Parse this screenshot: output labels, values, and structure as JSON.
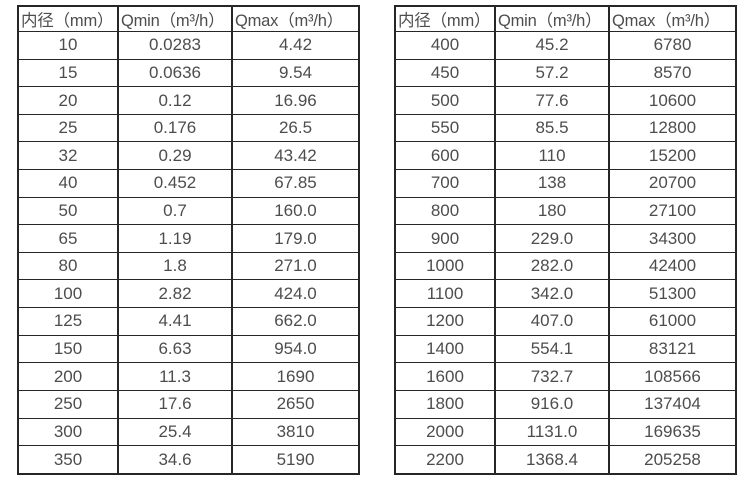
{
  "page": {
    "background_color": "#ffffff",
    "border_color": "#262626",
    "text_color": "#4d4d4d"
  },
  "tables": [
    {
      "name": "flow-spec-table-small-diameters",
      "headers": [
        "内径（mm）",
        "Qmin（m³/h）",
        "Qmax（m³/h）"
      ],
      "rows": [
        [
          "10",
          "0.0283",
          "4.42"
        ],
        [
          "15",
          "0.0636",
          "9.54"
        ],
        [
          "20",
          "0.12",
          "16.96"
        ],
        [
          "25",
          "0.176",
          "26.5"
        ],
        [
          "32",
          "0.29",
          "43.42"
        ],
        [
          "40",
          "0.452",
          "67.85"
        ],
        [
          "50",
          "0.7",
          "160.0"
        ],
        [
          "65",
          "1.19",
          "179.0"
        ],
        [
          "80",
          "1.8",
          "271.0"
        ],
        [
          "100",
          "2.82",
          "424.0"
        ],
        [
          "125",
          "4.41",
          "662.0"
        ],
        [
          "150",
          "6.63",
          "954.0"
        ],
        [
          "200",
          "11.3",
          "1690"
        ],
        [
          "250",
          "17.6",
          "2650"
        ],
        [
          "300",
          "25.4",
          "3810"
        ],
        [
          "350",
          "34.6",
          "5190"
        ]
      ]
    },
    {
      "name": "flow-spec-table-large-diameters",
      "headers": [
        "内径（mm）",
        "Qmin（m³/h）",
        "Qmax（m³/h）"
      ],
      "rows": [
        [
          "400",
          "45.2",
          "6780"
        ],
        [
          "450",
          "57.2",
          "8570"
        ],
        [
          "500",
          "77.6",
          "10600"
        ],
        [
          "550",
          "85.5",
          "12800"
        ],
        [
          "600",
          "110",
          "15200"
        ],
        [
          "700",
          "138",
          "20700"
        ],
        [
          "800",
          "180",
          "27100"
        ],
        [
          "900",
          "229.0",
          "34300"
        ],
        [
          "1000",
          "282.0",
          "42400"
        ],
        [
          "1100",
          "342.0",
          "51300"
        ],
        [
          "1200",
          "407.0",
          "61000"
        ],
        [
          "1400",
          "554.1",
          "83121"
        ],
        [
          "1600",
          "732.7",
          "108566"
        ],
        [
          "1800",
          "916.0",
          "137404"
        ],
        [
          "2000",
          "1131.0",
          "169635"
        ],
        [
          "2200",
          "1368.4",
          "205258"
        ]
      ]
    }
  ]
}
